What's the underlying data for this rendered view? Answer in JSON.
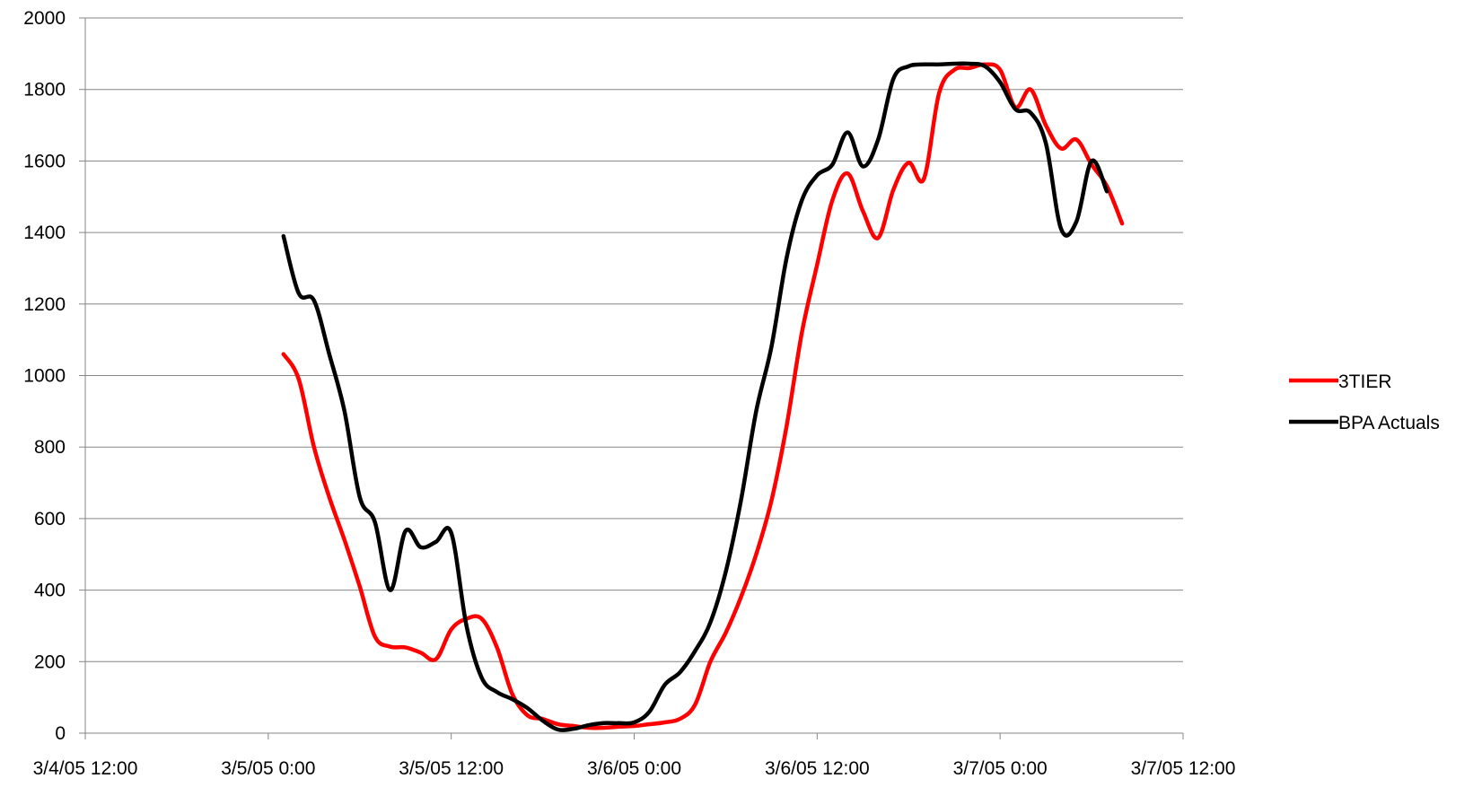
{
  "chart_data": {
    "type": "line",
    "title": "",
    "xlabel": "",
    "ylabel": "",
    "x_range": [
      "3/4/05 12:00",
      "3/7/05 12:00"
    ],
    "x_tick_labels": [
      "3/4/05 12:00",
      "3/5/05 0:00",
      "3/5/05 12:00",
      "3/6/05 0:00",
      "3/6/05 12:00",
      "3/7/05 0:00",
      "3/7/05 12:00"
    ],
    "ylim": [
      0,
      2000
    ],
    "y_tick_labels": [
      "0",
      "200",
      "400",
      "600",
      "800",
      "1000",
      "1200",
      "1400",
      "1600",
      "1800",
      "2000"
    ],
    "grid": "horizontal",
    "legend_position": "right",
    "series": [
      {
        "name": "3TIER",
        "color": "#ff0000",
        "points": [
          [
            "3/5/05 1:00",
            1060
          ],
          [
            "3/5/05 2:00",
            990
          ],
          [
            "3/5/05 3:00",
            800
          ],
          [
            "3/5/05 4:00",
            660
          ],
          [
            "3/5/05 5:00",
            540
          ],
          [
            "3/5/05 6:00",
            410
          ],
          [
            "3/5/05 7:00",
            270
          ],
          [
            "3/5/05 8:00",
            242
          ],
          [
            "3/5/05 9:00",
            240
          ],
          [
            "3/5/05 10:00",
            225
          ],
          [
            "3/5/05 11:00",
            207
          ],
          [
            "3/5/05 12:00",
            290
          ],
          [
            "3/5/05 13:00",
            320
          ],
          [
            "3/5/05 14:00",
            320
          ],
          [
            "3/5/05 15:00",
            240
          ],
          [
            "3/5/05 16:00",
            110
          ],
          [
            "3/5/05 17:00",
            50
          ],
          [
            "3/5/05 18:00",
            40
          ],
          [
            "3/5/05 19:00",
            25
          ],
          [
            "3/5/05 20:00",
            20
          ],
          [
            "3/5/05 21:00",
            15
          ],
          [
            "3/5/05 22:00",
            15
          ],
          [
            "3/5/05 23:00",
            18
          ],
          [
            "3/6/05 0:00",
            20
          ],
          [
            "3/6/05 1:00",
            25
          ],
          [
            "3/6/05 2:00",
            30
          ],
          [
            "3/6/05 3:00",
            40
          ],
          [
            "3/6/05 4:00",
            80
          ],
          [
            "3/6/05 5:00",
            200
          ],
          [
            "3/6/05 6:00",
            280
          ],
          [
            "3/6/05 7:00",
            380
          ],
          [
            "3/6/05 8:00",
            500
          ],
          [
            "3/6/05 9:00",
            650
          ],
          [
            "3/6/05 10:00",
            860
          ],
          [
            "3/6/05 11:00",
            1120
          ],
          [
            "3/6/05 12:00",
            1310
          ],
          [
            "3/6/05 13:00",
            1490
          ],
          [
            "3/6/05 14:00",
            1565
          ],
          [
            "3/6/05 15:00",
            1460
          ],
          [
            "3/6/05 16:00",
            1385
          ],
          [
            "3/6/05 17:00",
            1520
          ],
          [
            "3/6/05 18:00",
            1595
          ],
          [
            "3/6/05 19:00",
            1550
          ],
          [
            "3/6/05 20:00",
            1790
          ],
          [
            "3/6/05 21:00",
            1855
          ],
          [
            "3/6/05 22:00",
            1860
          ],
          [
            "3/6/05 23:00",
            1870
          ],
          [
            "3/7/05 0:00",
            1855
          ],
          [
            "3/7/05 1:00",
            1750
          ],
          [
            "3/7/05 2:00",
            1800
          ],
          [
            "3/7/05 3:00",
            1700
          ],
          [
            "3/7/05 4:00",
            1635
          ],
          [
            "3/7/05 5:00",
            1660
          ],
          [
            "3/7/05 6:00",
            1590
          ],
          [
            "3/7/05 7:00",
            1530
          ],
          [
            "3/7/05 8:00",
            1425
          ]
        ]
      },
      {
        "name": "BPA Actuals",
        "color": "#000000",
        "points": [
          [
            "3/5/05 1:00",
            1390
          ],
          [
            "3/5/05 2:00",
            1230
          ],
          [
            "3/5/05 3:00",
            1210
          ],
          [
            "3/5/05 4:00",
            1060
          ],
          [
            "3/5/05 5:00",
            900
          ],
          [
            "3/5/05 6:00",
            660
          ],
          [
            "3/5/05 7:00",
            590
          ],
          [
            "3/5/05 8:00",
            400
          ],
          [
            "3/5/05 9:00",
            565
          ],
          [
            "3/5/05 10:00",
            520
          ],
          [
            "3/5/05 11:00",
            535
          ],
          [
            "3/5/05 12:00",
            560
          ],
          [
            "3/5/05 13:00",
            300
          ],
          [
            "3/5/05 14:00",
            155
          ],
          [
            "3/5/05 15:00",
            115
          ],
          [
            "3/5/05 16:00",
            95
          ],
          [
            "3/5/05 17:00",
            70
          ],
          [
            "3/5/05 18:00",
            35
          ],
          [
            "3/5/05 19:00",
            10
          ],
          [
            "3/5/05 20:00",
            12
          ],
          [
            "3/5/05 21:00",
            22
          ],
          [
            "3/5/05 22:00",
            28
          ],
          [
            "3/5/05 23:00",
            28
          ],
          [
            "3/6/05 0:00",
            30
          ],
          [
            "3/6/05 1:00",
            60
          ],
          [
            "3/6/05 2:00",
            135
          ],
          [
            "3/6/05 3:00",
            170
          ],
          [
            "3/6/05 4:00",
            230
          ],
          [
            "3/6/05 5:00",
            310
          ],
          [
            "3/6/05 6:00",
            450
          ],
          [
            "3/6/05 7:00",
            650
          ],
          [
            "3/6/05 8:00",
            900
          ],
          [
            "3/6/05 9:00",
            1080
          ],
          [
            "3/6/05 10:00",
            1330
          ],
          [
            "3/6/05 11:00",
            1490
          ],
          [
            "3/6/05 12:00",
            1560
          ],
          [
            "3/6/05 13:00",
            1590
          ],
          [
            "3/6/05 14:00",
            1680
          ],
          [
            "3/6/05 15:00",
            1585
          ],
          [
            "3/6/05 16:00",
            1660
          ],
          [
            "3/6/05 17:00",
            1830
          ],
          [
            "3/6/05 18:00",
            1865
          ],
          [
            "3/6/05 19:00",
            1870
          ],
          [
            "3/6/05 20:00",
            1870
          ],
          [
            "3/6/05 21:00",
            1872
          ],
          [
            "3/6/05 22:00",
            1872
          ],
          [
            "3/6/05 23:00",
            1865
          ],
          [
            "3/7/05 0:00",
            1820
          ],
          [
            "3/7/05 1:00",
            1745
          ],
          [
            "3/7/05 2:00",
            1735
          ],
          [
            "3/7/05 3:00",
            1650
          ],
          [
            "3/7/05 4:00",
            1410
          ],
          [
            "3/7/05 5:00",
            1430
          ],
          [
            "3/7/05 6:00",
            1600
          ],
          [
            "3/7/05 7:00",
            1515
          ]
        ]
      }
    ]
  }
}
